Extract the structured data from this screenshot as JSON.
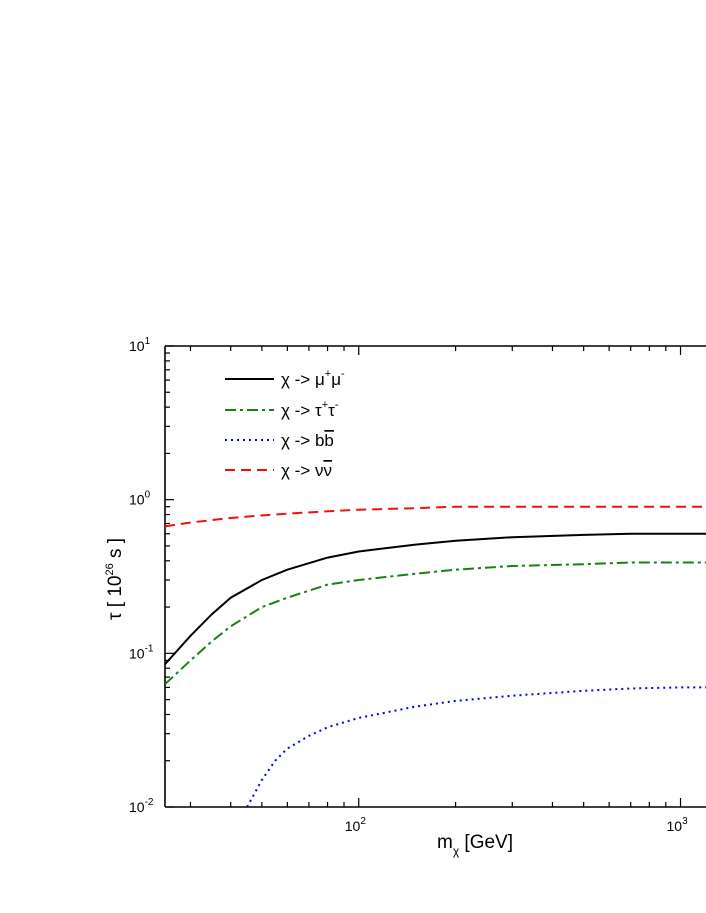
{
  "chart_data": {
    "type": "line",
    "title": "",
    "xlabel": {
      "main": "m",
      "sub": "χ",
      "unit": "[GeV]"
    },
    "ylabel": {
      "prefix": "τ [ 10",
      "sup": "26",
      "suffix": " s ]"
    },
    "xscale": "log",
    "yscale": "log",
    "xlim": [
      25,
      1200
    ],
    "ylim": [
      0.01,
      10
    ],
    "xticks": [
      {
        "value": 100,
        "base": "10",
        "exp": "2"
      },
      {
        "value": 1000,
        "base": "10",
        "exp": "3"
      }
    ],
    "yticks": [
      {
        "value": 0.01,
        "base": "10",
        "exp": "-2"
      },
      {
        "value": 0.1,
        "base": "10",
        "exp": "-1"
      },
      {
        "value": 1,
        "base": "10",
        "exp": "0"
      },
      {
        "value": 10,
        "base": "10",
        "exp": "1"
      }
    ],
    "grid": false,
    "legend_position": "top-left",
    "series": [
      {
        "name": "χ -> μ⁺μ⁻",
        "legend": {
          "main": "χ -> μ",
          "sup1": "+",
          "mid": "μ",
          "sup2": "-"
        },
        "color": "#000000",
        "dash": "solid",
        "x": [
          25,
          30,
          35,
          40,
          50,
          60,
          80,
          100,
          150,
          200,
          300,
          500,
          700,
          1000,
          1200
        ],
        "y": [
          0.085,
          0.13,
          0.18,
          0.23,
          0.3,
          0.35,
          0.42,
          0.46,
          0.51,
          0.54,
          0.57,
          0.59,
          0.6,
          0.6,
          0.6
        ]
      },
      {
        "name": "χ -> τ⁺τ⁻",
        "legend": {
          "main": "χ -> τ",
          "sup1": "+",
          "mid": "τ",
          "sup2": "-"
        },
        "color": "#1a7f1a",
        "dash": "dashdot",
        "x": [
          25,
          30,
          35,
          40,
          50,
          60,
          80,
          100,
          150,
          200,
          300,
          500,
          700,
          1000,
          1200
        ],
        "y": [
          0.063,
          0.09,
          0.12,
          0.15,
          0.2,
          0.23,
          0.28,
          0.3,
          0.33,
          0.35,
          0.37,
          0.38,
          0.39,
          0.39,
          0.39
        ]
      },
      {
        "name": "χ -> bb̄",
        "legend": {
          "main": "χ -> b",
          "overline": "b"
        },
        "color": "#0000ee",
        "dash": "dotted",
        "x": [
          45,
          50,
          55,
          60,
          70,
          80,
          100,
          150,
          200,
          300,
          500,
          700,
          1000,
          1200
        ],
        "y": [
          0.01,
          0.015,
          0.02,
          0.024,
          0.029,
          0.033,
          0.038,
          0.045,
          0.049,
          0.053,
          0.057,
          0.059,
          0.06,
          0.06
        ]
      },
      {
        "name": "χ -> νν̄",
        "legend": {
          "main": "χ -> ν",
          "overline": "ν"
        },
        "color": "#ee1111",
        "dash": "dashed",
        "x": [
          25,
          30,
          40,
          50,
          60,
          80,
          100,
          150,
          200,
          300,
          500,
          700,
          1000,
          1200
        ],
        "y": [
          0.67,
          0.71,
          0.76,
          0.79,
          0.81,
          0.84,
          0.86,
          0.88,
          0.9,
          0.9,
          0.9,
          0.9,
          0.9,
          0.9
        ]
      }
    ]
  }
}
